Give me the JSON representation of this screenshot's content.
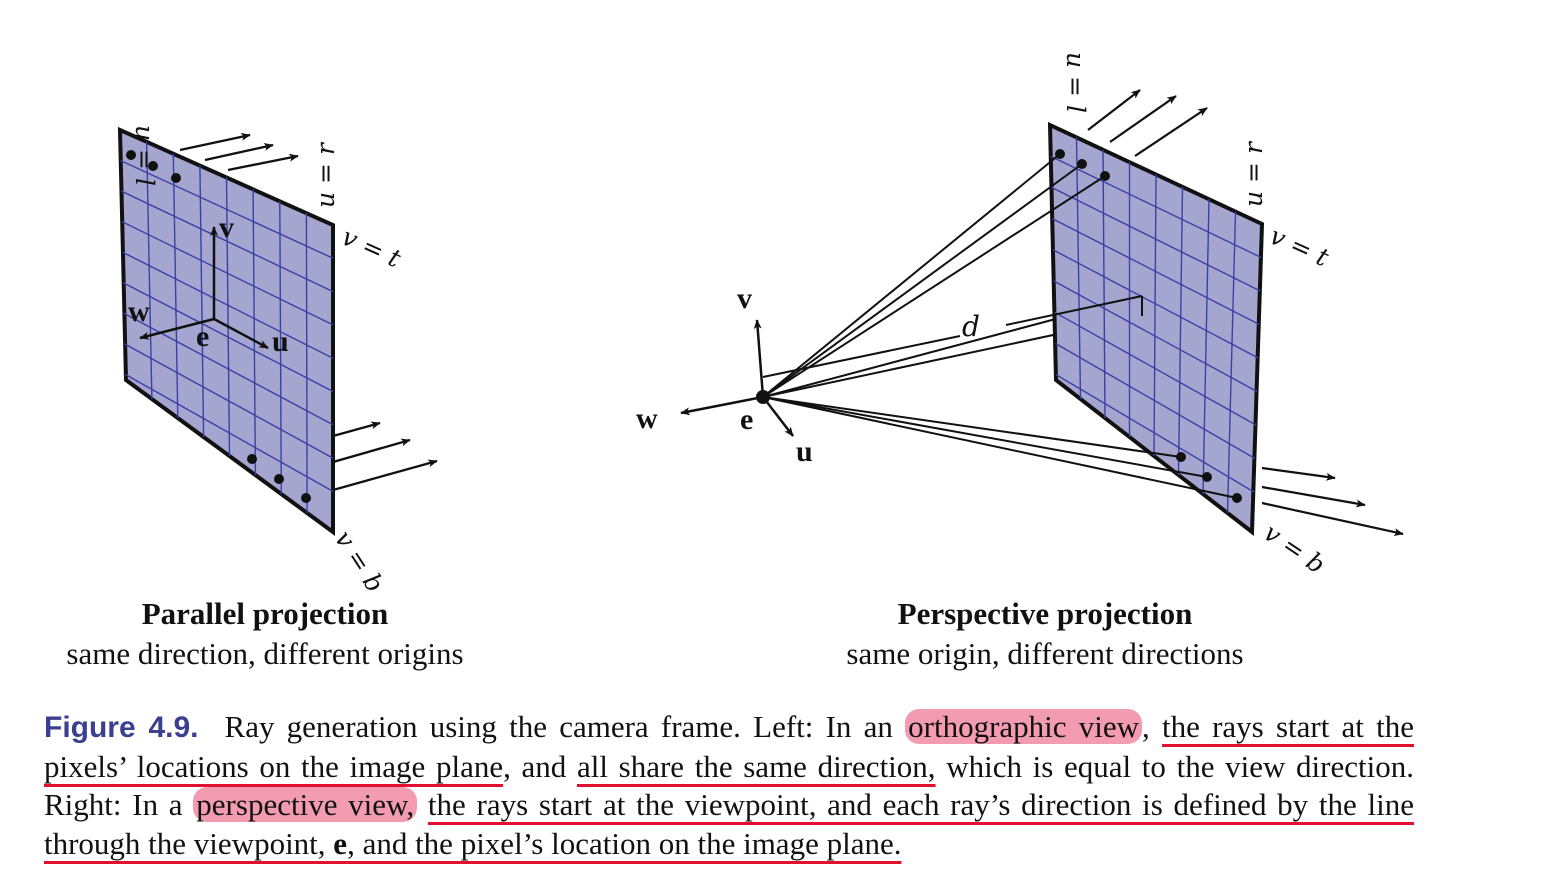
{
  "figure": {
    "left_panel": {
      "title": "Parallel projection",
      "subtitle": "same direction, different origins",
      "labels": {
        "u_l": "u = l",
        "u_r": "u = r",
        "v_t": "v = t",
        "v_b": "v = b",
        "v": "v",
        "w": "w",
        "e": "e",
        "u": "u"
      }
    },
    "right_panel": {
      "title": "Perspective projection",
      "subtitle": "same origin, different directions",
      "labels": {
        "u_l": "u = l",
        "u_r": "u = r",
        "v_t": "v = t",
        "v_b": "v = b",
        "v": "v",
        "w": "w",
        "e": "e",
        "u": "u",
        "d": "d"
      }
    },
    "colors": {
      "plane_fill": "#a4a6cf",
      "grid_line": "#3c3fa6",
      "highlight": "#f39bb0",
      "underline": "#e0102e",
      "figure_label": "#3b3f8f"
    }
  },
  "caption": {
    "label": "Figure 4.9.",
    "p1": "Ray generation using the camera frame. Left: In an ",
    "hl1": "orthographic view",
    "p2": ", ",
    "ul1": "the rays start at the pixels’ locations on the image plane",
    "p3": ", and ",
    "ul2": "all share the same direction,",
    "p4": " which is equal to the view direction. Right: In a ",
    "hl2": "perspective view,",
    "p5": " ",
    "ul3": "the rays start at the viewpoint, and each ray’s direction is defined by the line through the viewpoint, ",
    "ul3_bold": "e",
    "ul4": ", and the pixel’s location on the image plane."
  }
}
